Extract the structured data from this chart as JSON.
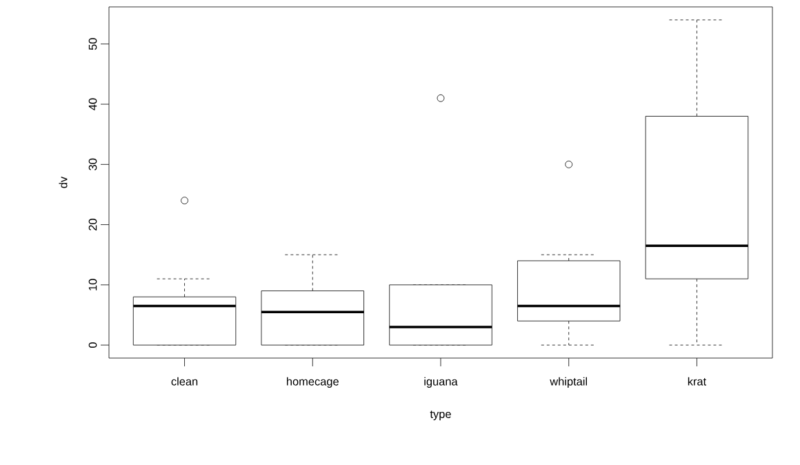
{
  "chart_data": {
    "type": "box",
    "xlabel": "type",
    "ylabel": "dv",
    "categories": [
      "clean",
      "homecage",
      "iguana",
      "whiptail",
      "krat"
    ],
    "boxes": [
      {
        "low": 0,
        "q1": 0,
        "median": 6.5,
        "q3": 8,
        "high": 11,
        "outliers": [
          24
        ]
      },
      {
        "low": 0,
        "q1": 0,
        "median": 5.5,
        "q3": 9,
        "high": 15
      },
      {
        "low": 0,
        "q1": 0,
        "median": 3,
        "q3": 10,
        "high": 10,
        "outliers": [
          41
        ]
      },
      {
        "low": 0,
        "q1": 4,
        "median": 6.5,
        "q3": 14,
        "high": 15,
        "outliers": [
          30
        ]
      },
      {
        "low": 0,
        "q1": 11,
        "median": 16.5,
        "q3": 38,
        "high": 54
      }
    ],
    "color": "#000000",
    "marker": "circle",
    "ylim": [
      -2.16,
      56.16
    ],
    "yticks": [
      0,
      10,
      20,
      30,
      40,
      50
    ]
  }
}
